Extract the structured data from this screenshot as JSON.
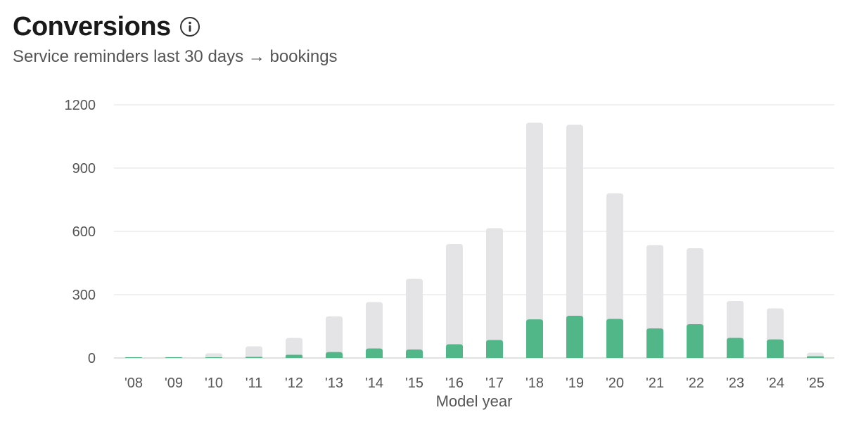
{
  "header": {
    "title": "Conversions",
    "subtitle": "Service reminders last 30 days → bookings",
    "info_icon": "info-icon"
  },
  "colors": {
    "reminders": "#e4e4e6",
    "bookings": "#52b788",
    "grid": "#e6e6e6",
    "text": "#555555"
  },
  "chart_data": {
    "type": "bar",
    "stacking": "overlay",
    "xlabel": "Model year",
    "ylabel": "",
    "ylim": [
      0,
      1200
    ],
    "yticks": [
      0,
      300,
      600,
      900,
      1200
    ],
    "grid": true,
    "categories": [
      "'08",
      "'09",
      "'10",
      "'11",
      "'12",
      "'13",
      "'14",
      "'15",
      "'16",
      "'17",
      "'18",
      "'19",
      "'20",
      "'21",
      "'22",
      "'23",
      "'24",
      "'25"
    ],
    "series": [
      {
        "values": [
          4,
          5,
          22,
          55,
          95,
          197,
          265,
          375,
          540,
          615,
          1115,
          1105,
          780,
          535,
          520,
          270,
          235,
          25
        ]
      },
      {
        "values": [
          1,
          1,
          2,
          5,
          15,
          28,
          45,
          40,
          65,
          85,
          183,
          200,
          185,
          140,
          160,
          95,
          88,
          8
        ]
      }
    ]
  }
}
